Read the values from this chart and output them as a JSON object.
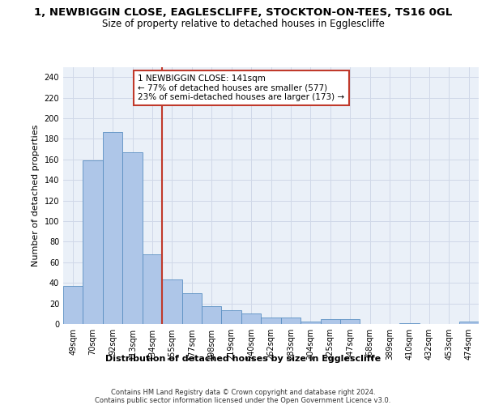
{
  "title1": "1, NEWBIGGIN CLOSE, EAGLESCLIFFE, STOCKTON-ON-TEES, TS16 0GL",
  "title2": "Size of property relative to detached houses in Egglescliffe",
  "xlabel": "Distribution of detached houses by size in Egglescliffe",
  "ylabel": "Number of detached properties",
  "categories": [
    "49sqm",
    "70sqm",
    "92sqm",
    "113sqm",
    "134sqm",
    "155sqm",
    "177sqm",
    "198sqm",
    "219sqm",
    "240sqm",
    "262sqm",
    "283sqm",
    "304sqm",
    "325sqm",
    "347sqm",
    "368sqm",
    "389sqm",
    "410sqm",
    "432sqm",
    "453sqm",
    "474sqm"
  ],
  "values": [
    37,
    159,
    187,
    167,
    68,
    43,
    30,
    17,
    13,
    10,
    6,
    6,
    2,
    5,
    5,
    0,
    0,
    1,
    0,
    0,
    2
  ],
  "bar_color": "#aec6e8",
  "bar_edge_color": "#5a8fc2",
  "vline_x": 4.5,
  "vline_color": "#c0392b",
  "annotation_line1": "1 NEWBIGGIN CLOSE: 141sqm",
  "annotation_line2": "← 77% of detached houses are smaller (577)",
  "annotation_line3": "23% of semi-detached houses are larger (173) →",
  "annotation_box_facecolor": "#ffffff",
  "annotation_box_edgecolor": "#c0392b",
  "ylim": [
    0,
    250
  ],
  "yticks": [
    0,
    20,
    40,
    60,
    80,
    100,
    120,
    140,
    160,
    180,
    200,
    220,
    240
  ],
  "grid_color": "#d0d8e8",
  "axes_bg": "#eaf0f8",
  "footer_line1": "Contains HM Land Registry data © Crown copyright and database right 2024.",
  "footer_line2": "Contains public sector information licensed under the Open Government Licence v3.0.",
  "title1_fontsize": 9.5,
  "title2_fontsize": 8.5,
  "ylabel_fontsize": 8,
  "tick_fontsize": 7,
  "xlabel_fontsize": 8,
  "footer_fontsize": 6,
  "ann_fontsize": 7.5
}
